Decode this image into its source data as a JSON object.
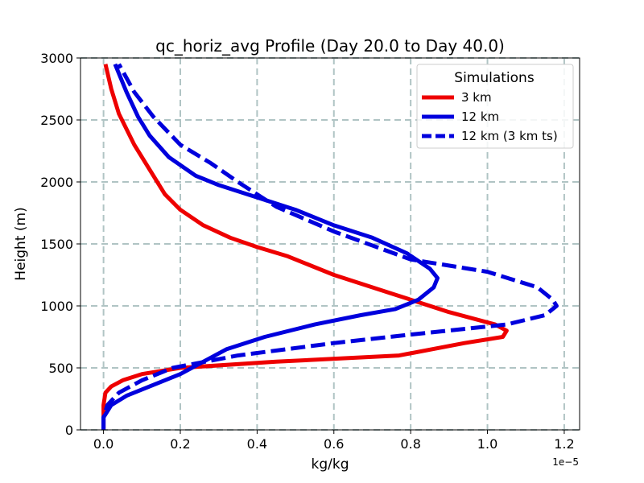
{
  "chart_data": {
    "type": "line",
    "title": "qc_horiz_avg Profile (Day 20.0 to Day 40.0)",
    "xlabel": "kg/kg",
    "ylabel": "Height (m)",
    "x_offset_label": "1e−5",
    "xlim": [
      -0.06,
      1.24
    ],
    "ylim": [
      0,
      3000
    ],
    "xticks": [
      0.0,
      0.2,
      0.4,
      0.6,
      0.8,
      1.0,
      1.2
    ],
    "xtick_labels": [
      "0.0",
      "0.2",
      "0.4",
      "0.6",
      "0.8",
      "1.0",
      "1.2"
    ],
    "yticks": [
      0,
      500,
      1000,
      1500,
      2000,
      2500,
      3000
    ],
    "ytick_labels": [
      "0",
      "500",
      "1000",
      "1500",
      "2000",
      "2500",
      "3000"
    ],
    "grid": true,
    "legend": {
      "title": "Simulations",
      "placement": "top-right"
    },
    "series": [
      {
        "name": "3 km",
        "color": "#ee0000",
        "dash": "solid",
        "x": [
          0.0,
          0.0,
          0.0,
          0.005,
          0.02,
          0.05,
          0.1,
          0.2,
          0.45,
          0.77,
          0.94,
          1.04,
          1.05,
          1.02,
          0.9,
          0.75,
          0.6,
          0.48,
          0.4,
          0.33,
          0.26,
          0.2,
          0.16,
          0.12,
          0.08,
          0.04,
          0.02,
          0.005
        ],
        "y": [
          0,
          100,
          200,
          300,
          350,
          400,
          450,
          500,
          550,
          600,
          700,
          750,
          800,
          850,
          950,
          1100,
          1250,
          1400,
          1475,
          1550,
          1650,
          1775,
          1900,
          2100,
          2300,
          2550,
          2750,
          2950
        ]
      },
      {
        "name": "12 km",
        "color": "#0000dd",
        "dash": "solid",
        "x": [
          0.0,
          0.0,
          0.02,
          0.06,
          0.12,
          0.2,
          0.26,
          0.32,
          0.42,
          0.55,
          0.67,
          0.76,
          0.82,
          0.86,
          0.87,
          0.85,
          0.79,
          0.7,
          0.6,
          0.5,
          0.4,
          0.3,
          0.24,
          0.17,
          0.12,
          0.09,
          0.06,
          0.03
        ],
        "y": [
          0,
          100,
          200,
          275,
          350,
          450,
          550,
          650,
          750,
          850,
          925,
          975,
          1050,
          1150,
          1225,
          1300,
          1425,
          1550,
          1650,
          1775,
          1875,
          1975,
          2050,
          2200,
          2375,
          2525,
          2725,
          2950
        ]
      },
      {
        "name": "12 km (3 km ts)",
        "color": "#0000dd",
        "dash": "dashed",
        "x": [
          0.0,
          0.0,
          0.01,
          0.04,
          0.1,
          0.18,
          0.35,
          0.6,
          0.82,
          1.05,
          1.15,
          1.18,
          1.17,
          1.13,
          1.0,
          0.8,
          0.6,
          0.45,
          0.35,
          0.28,
          0.2,
          0.13,
          0.08,
          0.04
        ],
        "y": [
          0,
          100,
          200,
          300,
          400,
          500,
          600,
          700,
          775,
          850,
          925,
          1000,
          1050,
          1150,
          1275,
          1375,
          1600,
          1800,
          2000,
          2150,
          2300,
          2525,
          2725,
          2950
        ]
      }
    ]
  }
}
